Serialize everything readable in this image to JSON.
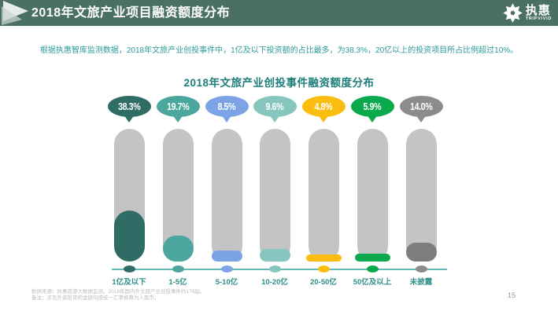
{
  "header": {
    "title": "2018年文旅产业项目融资额度分布",
    "logo": {
      "name": "执惠",
      "subtitle": "TRIPVIVID"
    }
  },
  "intro": "根据执惠智库监测数据，2018年文旅产业创投事件中，1亿及以下投资额的占比最多，为38.3%，20亿以上的投资项目所占比例超过10%。",
  "chart_data": {
    "type": "bar",
    "title": "2018年文旅产业创投事件融资额度分布",
    "categories": [
      "1亿及以下",
      "1-5亿",
      "5-10亿",
      "10-20亿",
      "20-50亿",
      "50亿及以上",
      "未披露"
    ],
    "values": [
      38.3,
      19.7,
      8.5,
      9.6,
      4.8,
      5.9,
      14.0
    ],
    "value_labels": [
      "38.3%",
      "19.7%",
      "8.5%",
      "9.6%",
      "4.8%",
      "5.9%",
      "14.0%"
    ],
    "unit": "%",
    "ylim": [
      0,
      100
    ],
    "grid": false,
    "legend": "none",
    "colors": [
      "#2F6C66",
      "#4BA79E",
      "#7CA3E5",
      "#86C6BF",
      "#FCBD11",
      "#0BA94E",
      "#8C8C8C"
    ],
    "fill_colors": [
      "#2F6C66",
      "#4BA79E",
      "#7CA3E5",
      "#86C6BF",
      "#FCBD11",
      "#0BA94E",
      "#7D7D7D"
    ],
    "track_color": "#C4C4C4",
    "axis_color": "#63B9B3",
    "label_color": "#2E8F8A"
  },
  "footnotes": {
    "line1": "数据来源：执惠旅游大数据监测，2018年国内外文旅产业创投事件约176起。",
    "line2": "备注：涉及外资投资的金额均按统一汇率换算为人民币。"
  },
  "page_number": "15",
  "theme": {
    "header_bg": "#4A7062",
    "accent_teal": "#2D9A97",
    "title_teal": "#1E7E7A",
    "note_gray": "#BDBDBD"
  }
}
